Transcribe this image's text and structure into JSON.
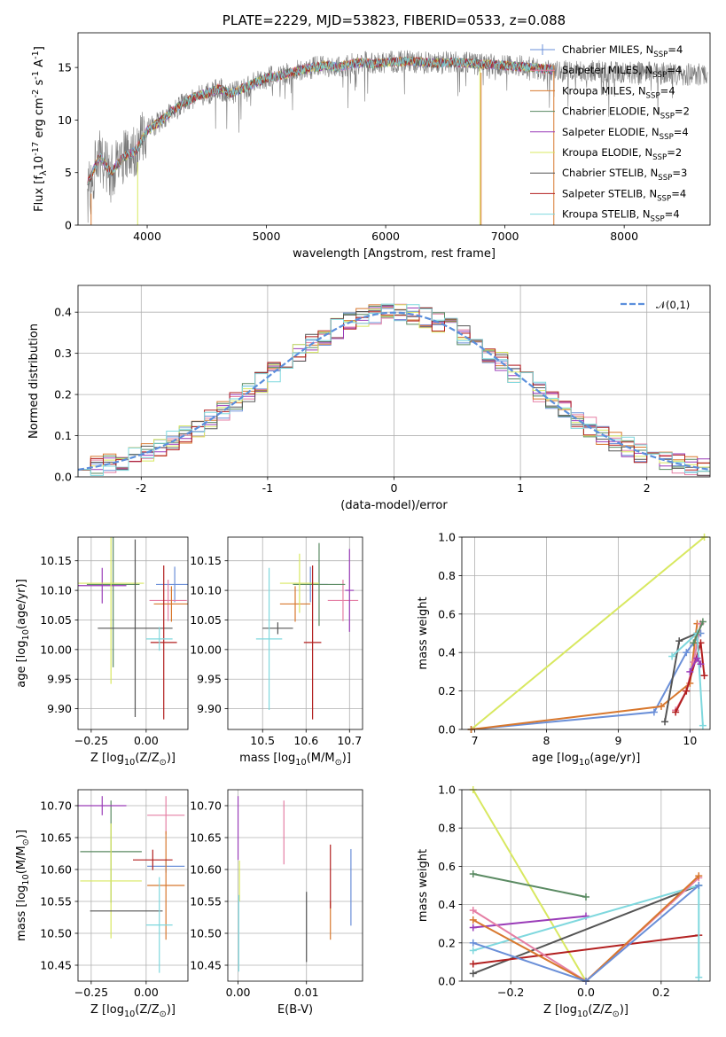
{
  "colors": {
    "Chabrier MILES": "#6a8fd8",
    "Salpeter MILES": "#e57fa4",
    "Kroupa MILES": "#d8782e",
    "Chabrier ELODIE": "#5a8a62",
    "Salpeter ELODIE": "#9a3cb8",
    "Kroupa ELODIE": "#d8e860",
    "Chabrier STELIB": "#555555",
    "Salpeter STELIB": "#b21f1f",
    "Kroupa STELIB": "#7fd8de",
    "gaussian": "#5b8fdc",
    "spectrum_data": "#7a7a7a"
  },
  "chart_data": [
    {
      "id": "spectrum",
      "type": "line",
      "title": "PLATE=2229, MJD=53823, FIBERID=0533, z=0.088",
      "xlabel": "wavelength [Angstrom, rest frame]",
      "ylabel": "Flux [f$_\\lambda$10$^{-17}$ erg cm$^{-2}$ s$^{-1}$ A$^{-1}$]",
      "xlim": [
        3420,
        8720
      ],
      "ylim": [
        0,
        18.3
      ],
      "xticks": [
        4000,
        5000,
        6000,
        7000,
        8000
      ],
      "yticks": [
        0,
        5,
        10,
        15
      ],
      "grid": false,
      "legend_position": "right",
      "legend": [
        {
          "label": "Chabrier MILES, N$_{SSP}$=4",
          "series": "Chabrier MILES"
        },
        {
          "label": "Salpeter MILES, N$_{SSP}$=4",
          "series": "Salpeter MILES"
        },
        {
          "label": "Kroupa MILES, N$_{SSP}$=4",
          "series": "Kroupa MILES"
        },
        {
          "label": "Chabrier ELODIE, N$_{SSP}$=2",
          "series": "Chabrier ELODIE"
        },
        {
          "label": "Salpeter ELODIE, N$_{SSP}$=4",
          "series": "Salpeter ELODIE"
        },
        {
          "label": "Kroupa ELODIE, N$_{SSP}$=2",
          "series": "Kroupa ELODIE"
        },
        {
          "label": "Chabrier STELIB, N$_{SSP}$=3",
          "series": "Chabrier STELIB"
        },
        {
          "label": "Salpeter STELIB, N$_{SSP}$=4",
          "series": "Salpeter STELIB"
        },
        {
          "label": "Kroupa STELIB, N$_{SSP}$=4",
          "series": "Kroupa STELIB"
        }
      ],
      "continuum": {
        "x": [
          3500,
          3600,
          3700,
          3800,
          3900,
          4000,
          4100,
          4200,
          4300,
          4400,
          4500,
          4600,
          4700,
          4800,
          4900,
          5000,
          5100,
          5200,
          5300,
          5400,
          5500,
          5600,
          5700,
          5800,
          5900,
          6000,
          6200,
          6400,
          6600,
          6800,
          7000,
          7200,
          7400
        ],
        "y": [
          4.0,
          6.5,
          5.0,
          6.5,
          7.0,
          9.0,
          9.8,
          10.8,
          11.5,
          12.2,
          12.5,
          13.0,
          12.5,
          13.0,
          13.5,
          14.0,
          14.2,
          14.5,
          14.8,
          15.0,
          15.2,
          15.0,
          15.3,
          15.5,
          15.3,
          15.5,
          15.6,
          15.4,
          15.5,
          15.3,
          15.2,
          15.0,
          14.8
        ]
      },
      "data_extent": [
        3500,
        8700
      ],
      "model_extent": [
        3500,
        7400
      ],
      "spikes": [
        {
          "x": 3530,
          "ymin": 0,
          "ymax": 3.0,
          "series": "Kroupa MILES"
        },
        {
          "x": 3920,
          "ymin": 0,
          "ymax": 6.0,
          "series": "Kroupa ELODIE"
        },
        {
          "x": 6790,
          "ymin": 0,
          "ymax": 15.0,
          "series": "Kroupa ELODIE"
        },
        {
          "x": 6800,
          "ymin": 0,
          "ymax": 14.5,
          "series": "Kroupa MILES"
        },
        {
          "x": 7410,
          "ymin": 0,
          "ymax": 15.2,
          "series": "Kroupa MILES"
        }
      ]
    },
    {
      "id": "residual-histogram",
      "type": "bar",
      "xlabel": "(data-model)/error",
      "ylabel": "Normed distribution",
      "xlim": [
        -2.5,
        2.5
      ],
      "ylim": [
        0,
        0.465
      ],
      "xticks": [
        -2,
        -1,
        0,
        1,
        2
      ],
      "yticks": [
        0.0,
        0.1,
        0.2,
        0.3,
        0.4
      ],
      "grid": true,
      "legend_position": "top-right",
      "gaussian": {
        "label": "$\\mathcal{N}(0,1)$",
        "mean": 0,
        "sigma": 1
      },
      "bin_width": 0.1,
      "bin_start": -2.5,
      "series_order": [
        "Chabrier MILES",
        "Salpeter MILES",
        "Kroupa MILES",
        "Chabrier ELODIE",
        "Salpeter ELODIE",
        "Kroupa ELODIE",
        "Chabrier STELIB",
        "Salpeter STELIB",
        "Kroupa STELIB"
      ]
    },
    {
      "id": "age-vs-Z",
      "type": "scatter",
      "xlabel": "Z [log$_{10}$($Z/Z_\\odot$)]",
      "ylabel": "age  [log$_{10}$($age/yr$)]",
      "xlim": [
        -0.31,
        0.19
      ],
      "ylim": [
        9.865,
        10.19
      ],
      "xticks": [
        -0.25,
        0.0
      ],
      "xticklabels": [
        "−0.25",
        "0.00"
      ],
      "yticks": [
        9.9,
        9.95,
        10.0,
        10.05,
        10.1,
        10.15
      ],
      "yticklabels": [
        "9.90",
        "9.95",
        "10.00",
        "10.05",
        "10.10",
        "10.15"
      ],
      "grid": true,
      "points": [
        {
          "series": "Chabrier MILES",
          "x": 0.13,
          "y": 10.11,
          "xerr": 0.085,
          "yerr": 0.03
        },
        {
          "series": "Salpeter MILES",
          "x": 0.1,
          "y": 10.083,
          "xerr": 0.085,
          "yerr": 0.035
        },
        {
          "series": "Kroupa MILES",
          "x": 0.115,
          "y": 10.077,
          "xerr": 0.08,
          "yerr": 0.03
        },
        {
          "series": "Chabrier ELODIE",
          "x": -0.15,
          "y": 10.11,
          "xerr": 0.12,
          "yerr": 0.14
        },
        {
          "series": "Salpeter ELODIE",
          "x": -0.2,
          "y": 10.108,
          "xerr": 0.11,
          "yerr": 0.03
        },
        {
          "series": "Kroupa ELODIE",
          "x": -0.16,
          "y": 10.112,
          "xerr": 0.15,
          "yerr": 0.17
        },
        {
          "series": "Chabrier STELIB",
          "x": -0.05,
          "y": 10.036,
          "xerr": 0.17,
          "yerr": 0.15
        },
        {
          "series": "Salpeter STELIB",
          "x": 0.08,
          "y": 10.012,
          "xerr": 0.06,
          "yerr": 0.13
        },
        {
          "series": "Kroupa STELIB",
          "x": 0.06,
          "y": 10.018,
          "xerr": 0.06,
          "yerr": 0.02
        }
      ]
    },
    {
      "id": "age-vs-mass",
      "type": "scatter",
      "xlabel": "mass [log$_{10}$($M/M_\\odot$)]",
      "ylabel": "",
      "xlim": [
        10.42,
        10.73
      ],
      "ylim": [
        9.865,
        10.19
      ],
      "xticks": [
        10.5,
        10.6,
        10.7
      ],
      "xticklabels": [
        "10.5",
        "10.6",
        "10.7"
      ],
      "yticks": [
        9.9,
        9.95,
        10.0,
        10.05,
        10.1,
        10.15
      ],
      "yticklabels": [
        "9.90",
        "9.95",
        "10.00",
        "10.05",
        "10.10",
        "10.15"
      ],
      "grid": true,
      "points": [
        {
          "series": "Chabrier MILES",
          "x": 10.61,
          "y": 10.11,
          "xerr": 0.04,
          "yerr": 0.03
        },
        {
          "series": "Salpeter MILES",
          "x": 10.685,
          "y": 10.083,
          "xerr": 0.035,
          "yerr": 0.035
        },
        {
          "series": "Kroupa MILES",
          "x": 10.575,
          "y": 10.077,
          "xerr": 0.035,
          "yerr": 0.03
        },
        {
          "series": "Chabrier ELODIE",
          "x": 10.63,
          "y": 10.11,
          "xerr": 0.06,
          "yerr": 0.07
        },
        {
          "series": "Salpeter ELODIE",
          "x": 10.7,
          "y": 10.1,
          "xerr": 0.01,
          "yerr": 0.07
        },
        {
          "series": "Kroupa ELODIE",
          "x": 10.585,
          "y": 10.112,
          "xerr": 0.045,
          "yerr": 0.05
        },
        {
          "series": "Chabrier STELIB",
          "x": 10.535,
          "y": 10.036,
          "xerr": 0.035,
          "yerr": 0.01
        },
        {
          "series": "Salpeter STELIB",
          "x": 10.615,
          "y": 10.012,
          "xerr": 0.02,
          "yerr": 0.13
        },
        {
          "series": "Kroupa STELIB",
          "x": 10.515,
          "y": 10.018,
          "xerr": 0.03,
          "yerr": 0.12
        }
      ]
    },
    {
      "id": "mass-weight-vs-age",
      "type": "line",
      "xlabel": "age  [log$_{10}$($age/yr$)]",
      "ylabel": "mass weight",
      "xlim": [
        6.82,
        10.28
      ],
      "ylim": [
        0,
        1.0
      ],
      "xticks": [
        7,
        8,
        9,
        10
      ],
      "xticklabels": [
        "7",
        "8",
        "9",
        "10"
      ],
      "yticks": [
        0.0,
        0.2,
        0.4,
        0.6,
        0.8,
        1.0
      ],
      "yticklabels": [
        "0.0",
        "0.2",
        "0.4",
        "0.6",
        "0.8",
        "1.0"
      ],
      "grid": true,
      "series": [
        {
          "name": "Kroupa ELODIE",
          "x": [
            6.95,
            10.2
          ],
          "y": [
            0.0,
            1.0
          ]
        },
        {
          "name": "Chabrier MILES",
          "x": [
            6.95,
            9.5,
            9.95,
            10.15
          ],
          "y": [
            0.0,
            0.09,
            0.4,
            0.5
          ]
        },
        {
          "name": "Kroupa MILES",
          "x": [
            6.95,
            9.6,
            10.0,
            10.1
          ],
          "y": [
            0.0,
            0.12,
            0.24,
            0.55
          ]
        },
        {
          "name": "Salpeter MILES",
          "x": [
            9.8,
            9.95,
            10.05,
            10.15
          ],
          "y": [
            0.1,
            0.2,
            0.35,
            0.55
          ]
        },
        {
          "name": "Chabrier STELIB",
          "x": [
            9.65,
            9.85,
            10.1
          ],
          "y": [
            0.04,
            0.46,
            0.5
          ]
        },
        {
          "name": "Salpeter STELIB",
          "x": [
            9.8,
            9.95,
            10.15,
            10.2
          ],
          "y": [
            0.09,
            0.2,
            0.45,
            0.28
          ]
        },
        {
          "name": "Kroupa STELIB",
          "x": [
            9.75,
            10.1,
            10.18
          ],
          "y": [
            0.38,
            0.5,
            0.02
          ]
        },
        {
          "name": "Chabrier ELODIE",
          "x": [
            10.05,
            10.18
          ],
          "y": [
            0.45,
            0.56
          ]
        },
        {
          "name": "Salpeter ELODIE",
          "x": [
            10.0,
            10.1,
            10.15
          ],
          "y": [
            0.3,
            0.37,
            0.34
          ]
        }
      ]
    },
    {
      "id": "mass-vs-Z",
      "type": "scatter",
      "xlabel": "Z [log$_{10}$($Z/Z_\\odot$)]",
      "ylabel": "mass [log$_{10}$($M/M_\\odot$)]",
      "xlim": [
        -0.31,
        0.19
      ],
      "ylim": [
        10.425,
        10.725
      ],
      "xticks": [
        -0.25,
        0.0
      ],
      "xticklabels": [
        "−0.25",
        "0.00"
      ],
      "yticks": [
        10.45,
        10.5,
        10.55,
        10.6,
        10.65,
        10.7
      ],
      "yticklabels": [
        "10.45",
        "10.50",
        "10.55",
        "10.60",
        "10.65",
        "10.70"
      ],
      "grid": true,
      "points": [
        {
          "series": "Chabrier MILES",
          "x": 0.09,
          "y": 10.605,
          "xerr": 0.085,
          "yerr": 0.01
        },
        {
          "series": "Salpeter MILES",
          "x": 0.09,
          "y": 10.685,
          "xerr": 0.085,
          "yerr": 0.03
        },
        {
          "series": "Kroupa MILES",
          "x": 0.09,
          "y": 10.575,
          "xerr": 0.085,
          "yerr": 0.085
        },
        {
          "series": "Chabrier ELODIE",
          "x": -0.16,
          "y": 10.628,
          "xerr": 0.14,
          "yerr": 0.08
        },
        {
          "series": "Salpeter ELODIE",
          "x": -0.2,
          "y": 10.7,
          "xerr": 0.11,
          "yerr": 0.015
        },
        {
          "series": "Kroupa ELODIE",
          "x": -0.16,
          "y": 10.582,
          "xerr": 0.14,
          "yerr": 0.09
        },
        {
          "series": "Chabrier STELIB",
          "x": -0.09,
          "y": 10.535,
          "xerr": 0.165,
          "yerr": 0.0
        },
        {
          "series": "Salpeter STELIB",
          "x": 0.03,
          "y": 10.615,
          "xerr": 0.09,
          "yerr": 0.016
        },
        {
          "series": "Kroupa STELIB",
          "x": 0.06,
          "y": 10.513,
          "xerr": 0.06,
          "yerr": 0.075
        }
      ]
    },
    {
      "id": "mass-vs-EBV",
      "type": "scatter",
      "xlabel": "E(B-V)",
      "ylabel": "",
      "xlim": [
        -0.0015,
        0.0182
      ],
      "ylim": [
        10.425,
        10.725
      ],
      "xticks": [
        0.0,
        0.01
      ],
      "xticklabels": [
        "0.00",
        "0.01"
      ],
      "yticks": [
        10.45,
        10.5,
        10.55,
        10.6,
        10.65,
        10.7
      ],
      "yticklabels": [
        "10.45",
        "10.50",
        "10.55",
        "10.60",
        "10.65",
        "10.70"
      ],
      "grid": true,
      "points": [
        {
          "series": "Salpeter ELODIE",
          "x": 0.0,
          "y": 10.665,
          "xerr": 0.0,
          "yerr": 0.05
        },
        {
          "series": "Kroupa ELODIE",
          "x": 0.0002,
          "y": 10.582,
          "xerr": 0.0,
          "yerr": 0.032
        },
        {
          "series": "Kroupa STELIB",
          "x": 0.0001,
          "y": 10.5,
          "xerr": 0.0,
          "yerr": 0.06
        },
        {
          "series": "Salpeter MILES",
          "x": 0.0067,
          "y": 10.658,
          "xerr": 0.0,
          "yerr": 0.05
        },
        {
          "series": "Chabrier STELIB",
          "x": 0.01,
          "y": 10.51,
          "xerr": 0.0,
          "yerr": 0.055
        },
        {
          "series": "Kroupa MILES",
          "x": 0.0135,
          "y": 10.52,
          "xerr": 0.0,
          "yerr": 0.03
        },
        {
          "series": "Salpeter STELIB",
          "x": 0.0135,
          "y": 10.589,
          "xerr": 0.0,
          "yerr": 0.05
        },
        {
          "series": "Chabrier MILES",
          "x": 0.0165,
          "y": 10.572,
          "xerr": 0.0,
          "yerr": 0.06
        }
      ]
    },
    {
      "id": "mass-weight-vs-Z",
      "type": "line",
      "xlabel": "Z [log$_{10}$($Z/Z_\\odot$)]",
      "ylabel": "mass weight",
      "xlim": [
        -0.33,
        0.33
      ],
      "ylim": [
        0,
        1.0
      ],
      "xticks": [
        -0.2,
        0.0,
        0.2
      ],
      "xticklabels": [
        "−0.2",
        "0.0",
        "0.2"
      ],
      "yticks": [
        0.0,
        0.2,
        0.4,
        0.6,
        0.8,
        1.0
      ],
      "yticklabels": [
        "0.0",
        "0.2",
        "0.4",
        "0.6",
        "0.8",
        "1.0"
      ],
      "grid": true,
      "series": [
        {
          "name": "Kroupa ELODIE",
          "x": [
            -0.3,
            0.0
          ],
          "y": [
            1.0,
            0.0
          ]
        },
        {
          "name": "Chabrier ELODIE",
          "x": [
            -0.3,
            0.0
          ],
          "y": [
            0.56,
            0.44
          ]
        },
        {
          "name": "Salpeter ELODIE",
          "x": [
            -0.3,
            0.0
          ],
          "y": [
            0.28,
            0.34
          ]
        },
        {
          "name": "Chabrier STELIB",
          "x": [
            -0.3,
            0.3
          ],
          "y": [
            0.04,
            0.5
          ]
        },
        {
          "name": "Salpeter STELIB",
          "x": [
            -0.3,
            0.3
          ],
          "y": [
            0.09,
            0.24
          ]
        },
        {
          "name": "Kroupa STELIB",
          "x": [
            -0.3,
            0.3,
            0.3
          ],
          "y": [
            0.16,
            0.5,
            0.02
          ]
        },
        {
          "name": "Salpeter MILES",
          "x": [
            -0.3,
            0.0,
            0.3
          ],
          "y": [
            0.37,
            0.0,
            0.54
          ]
        },
        {
          "name": "Kroupa MILES",
          "x": [
            -0.3,
            0.0,
            0.3
          ],
          "y": [
            0.32,
            0.0,
            0.55
          ]
        },
        {
          "name": "Chabrier MILES",
          "x": [
            -0.3,
            0.0,
            0.3
          ],
          "y": [
            0.2,
            0.0,
            0.5
          ]
        }
      ]
    }
  ]
}
